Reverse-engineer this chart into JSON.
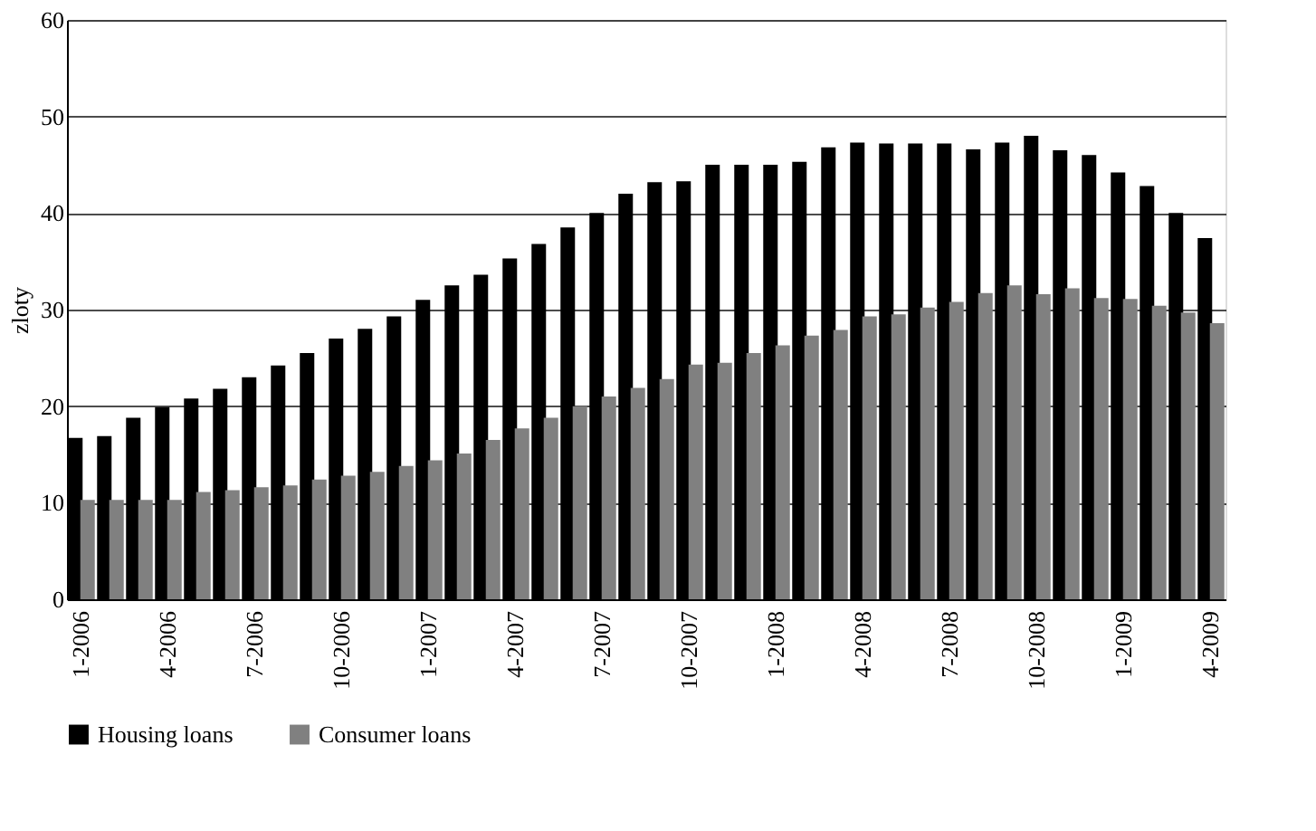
{
  "chart_data": {
    "type": "bar",
    "ylabel": "zloty",
    "categories": [
      "1-2006",
      null,
      null,
      "4-2006",
      null,
      null,
      "7-2006",
      null,
      null,
      "10-2006",
      null,
      null,
      "1-2007",
      null,
      null,
      "4-2007",
      null,
      null,
      "7-2007",
      null,
      null,
      "10-2007",
      null,
      null,
      "1-2008",
      null,
      null,
      "4-2008",
      null,
      null,
      "7-2008",
      null,
      null,
      "10-2008",
      null,
      null,
      "1-2009",
      null,
      null,
      "4-2009"
    ],
    "series": [
      {
        "name": "Housing loans",
        "color": "#000000",
        "values": [
          16.7,
          16.9,
          18.8,
          19.9,
          20.8,
          21.8,
          23,
          24.2,
          25.5,
          27,
          28,
          29.3,
          31,
          32.5,
          33.6,
          35.3,
          36.8,
          38.5,
          40,
          42,
          43.2,
          43.3,
          45,
          45,
          45,
          45.3,
          46.8,
          47.3,
          47.2,
          47.2,
          47.2,
          46.6,
          47.3,
          48,
          46.5,
          46,
          44.2,
          42.8,
          40,
          37.4
        ]
      },
      {
        "name": "Consumer loans",
        "color": "#808080",
        "values": [
          10.3,
          10.3,
          10.3,
          10.3,
          11.1,
          11.3,
          11.6,
          11.8,
          12.4,
          12.8,
          13.2,
          13.8,
          14.4,
          15.1,
          16.5,
          17.7,
          18.8,
          20,
          21,
          21.9,
          22.8,
          24.3,
          24.5,
          25.5,
          26.3,
          27.3,
          27.9,
          29.3,
          29.5,
          30.2,
          30.8,
          31.7,
          32.5,
          31.6,
          32.2,
          31.2,
          31.1,
          30.4,
          29.7,
          28.6
        ]
      }
    ],
    "ylim": [
      0,
      60
    ],
    "yticks": [
      0,
      10,
      20,
      30,
      40,
      50,
      60
    ],
    "grid": "y",
    "legend": "bottom"
  }
}
